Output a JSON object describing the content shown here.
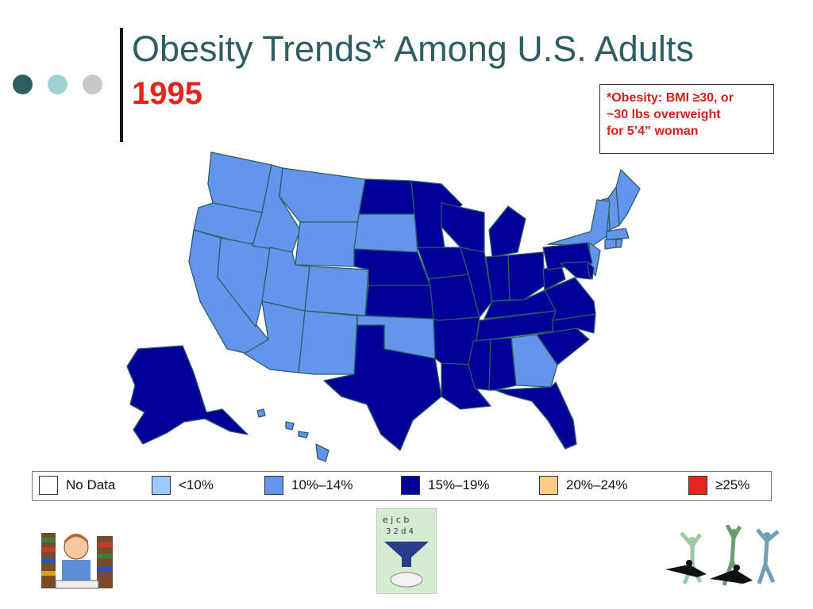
{
  "slide": {
    "title": "Obesity Trends* Among U.S. Adults",
    "year": "1995",
    "note_lines": [
      "*Obesity: BMI ≥30, or",
      "~30 lbs overweight",
      "for 5’4” woman"
    ],
    "bullet_colors": [
      "#2e5e62",
      "#9fd1d3",
      "#c8c8c8"
    ]
  },
  "legend": [
    {
      "label": "No Data",
      "color": "#ffffff"
    },
    {
      "label": "<10%",
      "color": "#9bc8ff"
    },
    {
      "label": "10%–14%",
      "color": "#6495ed"
    },
    {
      "label": "15%–19%",
      "color": "#000099"
    },
    {
      "label": "20%–24%",
      "color": "#ffcc88"
    },
    {
      "label": "≥25%",
      "color": "#e0261e"
    }
  ],
  "map": {
    "state_class": {
      "WA": "10%–14%",
      "OR": "10%–14%",
      "CA": "10%–14%",
      "NV": "10%–14%",
      "ID": "10%–14%",
      "MT": "10%–14%",
      "WY": "10%–14%",
      "UT": "10%–14%",
      "CO": "10%–14%",
      "AZ": "10%–14%",
      "NM": "10%–14%",
      "SD": "10%–14%",
      "OK": "10%–14%",
      "GA": "10%–14%",
      "HI": "10%–14%",
      "ME": "10%–14%",
      "NH": "10%–14%",
      "VT": "10%–14%",
      "NY": "10%–14%",
      "MA": "10%–14%",
      "CT": "10%–14%",
      "RI": "10%–14%",
      "NJ": "10%–14%",
      "ND": "15%–19%",
      "NE": "15%–19%",
      "KS": "15%–19%",
      "TX": "15%–19%",
      "MN": "15%–19%",
      "IA": "15%–19%",
      "MO": "15%–19%",
      "AR": "15%–19%",
      "LA": "15%–19%",
      "WI": "15%–19%",
      "IL": "15%–19%",
      "MI": "15%–19%",
      "IN": "15%–19%",
      "OH": "15%–19%",
      "KY": "15%–19%",
      "TN": "15%–19%",
      "MS": "15%–19%",
      "AL": "15%–19%",
      "FL": "15%–19%",
      "SC": "15%–19%",
      "NC": "15%–19%",
      "VA": "15%–19%",
      "WV": "15%–19%",
      "PA": "15%–19%",
      "MD": "15%–19%",
      "DE": "15%–19%",
      "AK": "15%–19%"
    }
  }
}
